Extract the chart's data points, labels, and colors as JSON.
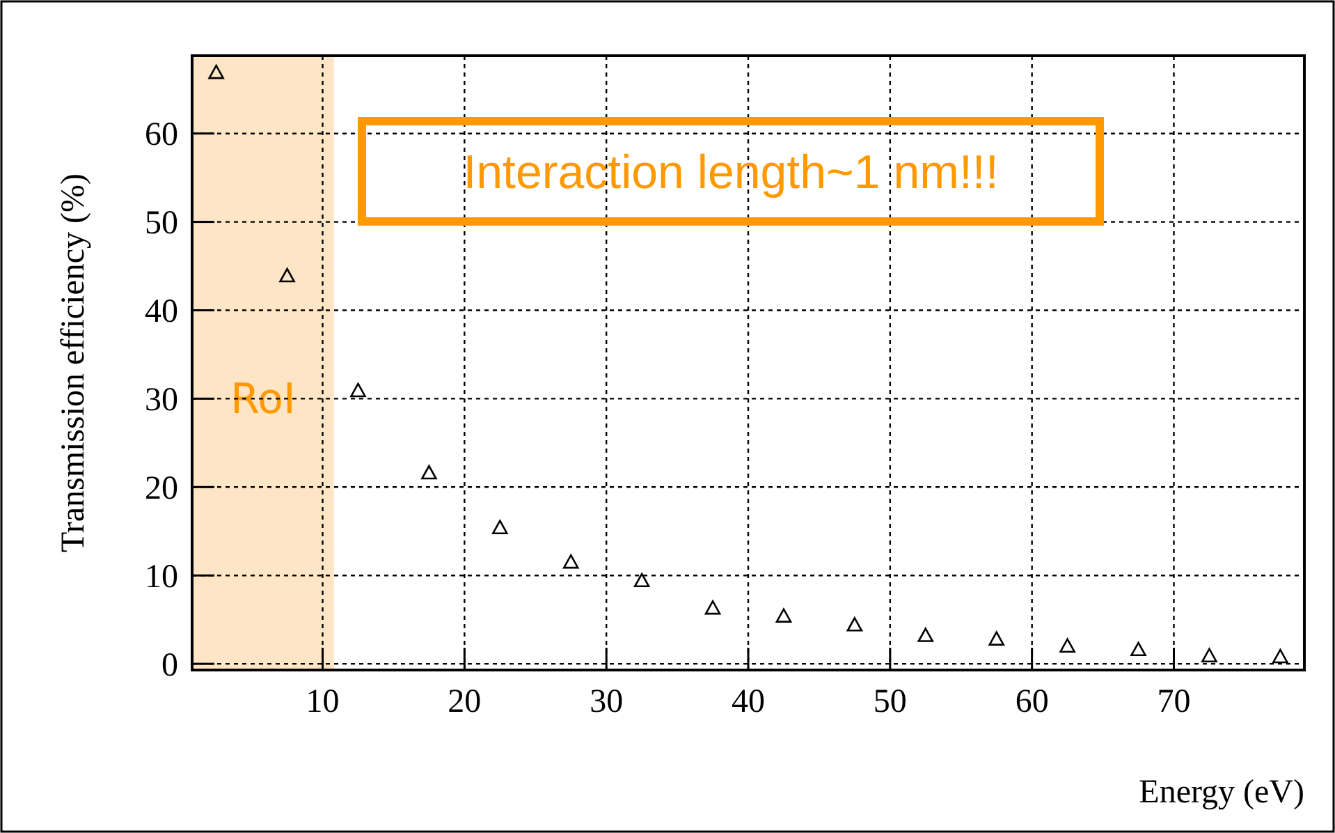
{
  "chart_data": {
    "type": "scatter",
    "xlabel": "Energy (eV)",
    "ylabel": "Transmission efficiency (%)",
    "x": [
      2.5,
      7.5,
      12.5,
      17.5,
      22.5,
      27.5,
      32.5,
      37.5,
      42.5,
      47.5,
      52.5,
      57.5,
      62.5,
      67.5,
      72.5,
      77.5
    ],
    "series": [
      {
        "color": "#000000",
        "values": [
          66.9,
          43.9,
          30.9,
          21.6,
          15.4,
          11.5,
          9.4,
          6.3,
          5.4,
          4.4,
          3.2,
          2.8,
          2.0,
          1.6,
          0.9,
          0.8
        ]
      }
    ],
    "marker": "triangle",
    "xlim": [
      0.8,
      79.2
    ],
    "xticks": [
      10,
      20,
      30,
      40,
      50,
      60,
      70
    ],
    "ylim": [
      -0.7,
      68.8
    ],
    "yticks": [
      0,
      10,
      20,
      30,
      40,
      50,
      60
    ],
    "grid": true,
    "bands": [
      {
        "axis": "x",
        "from": 0.8,
        "to": 10.8,
        "label": "RoI",
        "color": "#fde5c6"
      }
    ],
    "annotations": [
      "Interaction length~1 nm!!!"
    ]
  }
}
